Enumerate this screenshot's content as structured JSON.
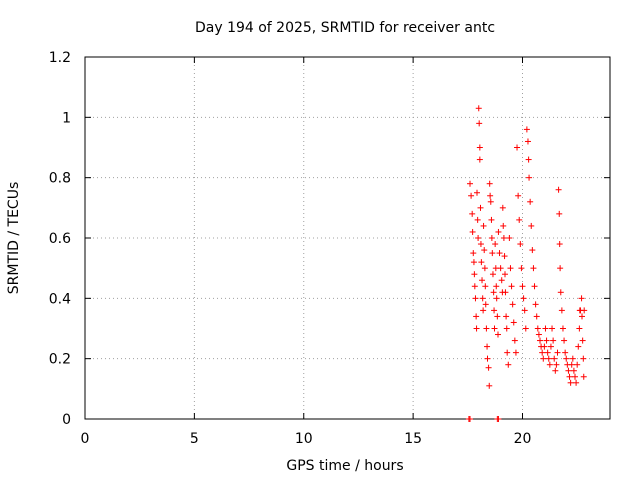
{
  "chart_data": {
    "type": "scatter",
    "title": "Day 194 of 2025, SRMTID for receiver antc",
    "xlabel": "GPS time / hours",
    "ylabel": "SRMTID / TECUs",
    "xlim": [
      0,
      24
    ],
    "ylim": [
      0,
      1.2
    ],
    "xticks": [
      0,
      5,
      10,
      15,
      20
    ],
    "xtick_labels": [
      "0",
      "5",
      "10",
      "15",
      "20"
    ],
    "yticks": [
      0,
      0.2,
      0.4,
      0.6,
      0.8,
      1,
      1.2
    ],
    "ytick_labels": [
      "0",
      "0.2",
      "0.4",
      "0.6",
      "0.8",
      "1",
      "1.2"
    ],
    "grid": true,
    "marker": "plus",
    "marker_color": "#ff0000",
    "series": [
      {
        "name": "SRMTID",
        "points": [
          [
            17.55,
            0.0
          ],
          [
            17.6,
            0.0
          ],
          [
            18.85,
            0.0
          ],
          [
            18.9,
            0.0
          ],
          [
            17.6,
            0.78
          ],
          [
            17.65,
            0.74
          ],
          [
            17.7,
            0.68
          ],
          [
            17.72,
            0.62
          ],
          [
            17.75,
            0.55
          ],
          [
            17.78,
            0.52
          ],
          [
            17.8,
            0.48
          ],
          [
            17.82,
            0.44
          ],
          [
            17.85,
            0.4
          ],
          [
            17.88,
            0.34
          ],
          [
            17.9,
            0.3
          ],
          [
            17.92,
            0.75
          ],
          [
            17.95,
            0.66
          ],
          [
            17.97,
            0.6
          ],
          [
            18.0,
            1.03
          ],
          [
            18.02,
            0.98
          ],
          [
            18.05,
            0.9
          ],
          [
            18.05,
            0.86
          ],
          [
            18.08,
            0.7
          ],
          [
            18.1,
            0.58
          ],
          [
            18.12,
            0.52
          ],
          [
            18.15,
            0.46
          ],
          [
            18.18,
            0.4
          ],
          [
            18.2,
            0.36
          ],
          [
            18.22,
            0.64
          ],
          [
            18.25,
            0.56
          ],
          [
            18.28,
            0.5
          ],
          [
            18.3,
            0.44
          ],
          [
            18.32,
            0.38
          ],
          [
            18.35,
            0.3
          ],
          [
            18.38,
            0.24
          ],
          [
            18.4,
            0.2
          ],
          [
            18.45,
            0.17
          ],
          [
            18.48,
            0.11
          ],
          [
            18.5,
            0.78
          ],
          [
            18.52,
            0.74
          ],
          [
            18.55,
            0.72
          ],
          [
            18.58,
            0.66
          ],
          [
            18.6,
            0.6
          ],
          [
            18.62,
            0.55
          ],
          [
            18.65,
            0.48
          ],
          [
            18.68,
            0.42
          ],
          [
            18.7,
            0.36
          ],
          [
            18.72,
            0.3
          ],
          [
            18.75,
            0.58
          ],
          [
            18.78,
            0.5
          ],
          [
            18.8,
            0.44
          ],
          [
            18.82,
            0.4
          ],
          [
            18.85,
            0.34
          ],
          [
            18.88,
            0.28
          ],
          [
            18.9,
            0.62
          ],
          [
            18.95,
            0.55
          ],
          [
            19.0,
            0.5
          ],
          [
            19.05,
            0.46
          ],
          [
            19.08,
            0.42
          ],
          [
            19.1,
            0.7
          ],
          [
            19.12,
            0.64
          ],
          [
            19.15,
            0.6
          ],
          [
            19.18,
            0.54
          ],
          [
            19.2,
            0.48
          ],
          [
            19.22,
            0.42
          ],
          [
            19.25,
            0.34
          ],
          [
            19.28,
            0.3
          ],
          [
            19.3,
            0.22
          ],
          [
            19.35,
            0.18
          ],
          [
            19.4,
            0.6
          ],
          [
            19.45,
            0.5
          ],
          [
            19.5,
            0.44
          ],
          [
            19.55,
            0.38
          ],
          [
            19.6,
            0.32
          ],
          [
            19.65,
            0.26
          ],
          [
            19.7,
            0.22
          ],
          [
            19.75,
            0.9
          ],
          [
            19.8,
            0.74
          ],
          [
            19.85,
            0.66
          ],
          [
            19.9,
            0.58
          ],
          [
            19.95,
            0.5
          ],
          [
            20.0,
            0.44
          ],
          [
            20.05,
            0.4
          ],
          [
            20.1,
            0.36
          ],
          [
            20.15,
            0.3
          ],
          [
            20.2,
            0.96
          ],
          [
            20.25,
            0.92
          ],
          [
            20.28,
            0.86
          ],
          [
            20.3,
            0.8
          ],
          [
            20.35,
            0.72
          ],
          [
            20.4,
            0.64
          ],
          [
            20.45,
            0.56
          ],
          [
            20.5,
            0.5
          ],
          [
            20.55,
            0.44
          ],
          [
            20.6,
            0.38
          ],
          [
            20.65,
            0.34
          ],
          [
            20.7,
            0.3
          ],
          [
            20.75,
            0.28
          ],
          [
            20.8,
            0.26
          ],
          [
            20.85,
            0.24
          ],
          [
            20.9,
            0.22
          ],
          [
            20.95,
            0.2
          ],
          [
            21.0,
            0.24
          ],
          [
            21.05,
            0.3
          ],
          [
            21.1,
            0.26
          ],
          [
            21.15,
            0.22
          ],
          [
            21.2,
            0.2
          ],
          [
            21.25,
            0.18
          ],
          [
            21.3,
            0.24
          ],
          [
            21.35,
            0.3
          ],
          [
            21.4,
            0.26
          ],
          [
            21.45,
            0.2
          ],
          [
            21.5,
            0.16
          ],
          [
            21.55,
            0.18
          ],
          [
            21.6,
            0.22
          ],
          [
            21.65,
            0.76
          ],
          [
            21.68,
            0.68
          ],
          [
            21.7,
            0.58
          ],
          [
            21.72,
            0.5
          ],
          [
            21.75,
            0.42
          ],
          [
            21.8,
            0.36
          ],
          [
            21.85,
            0.3
          ],
          [
            21.9,
            0.26
          ],
          [
            21.95,
            0.22
          ],
          [
            22.0,
            0.2
          ],
          [
            22.05,
            0.18
          ],
          [
            22.1,
            0.16
          ],
          [
            22.15,
            0.14
          ],
          [
            22.2,
            0.12
          ],
          [
            22.25,
            0.18
          ],
          [
            22.3,
            0.2
          ],
          [
            22.35,
            0.16
          ],
          [
            22.4,
            0.14
          ],
          [
            22.45,
            0.12
          ],
          [
            22.5,
            0.18
          ],
          [
            22.55,
            0.24
          ],
          [
            22.6,
            0.3
          ],
          [
            22.62,
            0.36
          ],
          [
            22.65,
            0.36
          ],
          [
            22.7,
            0.4
          ],
          [
            22.72,
            0.34
          ],
          [
            22.75,
            0.26
          ],
          [
            22.78,
            0.2
          ],
          [
            22.8,
            0.14
          ],
          [
            22.82,
            0.36
          ]
        ]
      }
    ]
  }
}
